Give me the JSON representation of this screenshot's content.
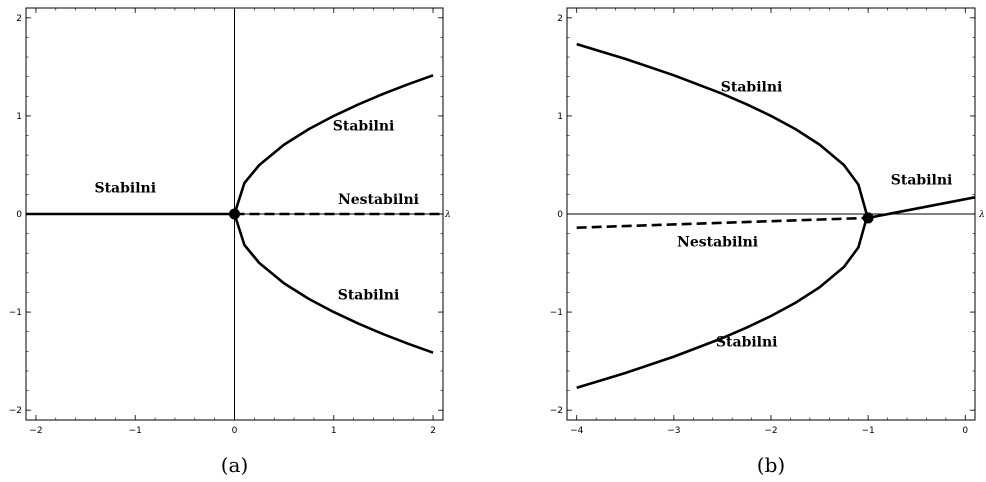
{
  "chart_data": [
    {
      "type": "line",
      "caption": "(a)",
      "xlim": [
        -2.1,
        2.1
      ],
      "ylim": [
        -2.1,
        2.1
      ],
      "x_ticks": [
        -2,
        -1,
        0,
        1,
        2
      ],
      "y_ticks": [
        -2,
        -1,
        0,
        1,
        2
      ],
      "x_tick_labels": [
        "−2",
        "−1",
        "0",
        "1",
        "2"
      ],
      "y_tick_labels": [
        "−2",
        "−1",
        "0",
        "1",
        "2"
      ],
      "x_axis_label": "λ",
      "series": [
        {
          "style": "solid",
          "points": [
            [
              -2.1,
              0
            ],
            [
              0,
              0
            ]
          ]
        },
        {
          "style": "dashed",
          "points": [
            [
              0,
              0
            ],
            [
              2.1,
              0
            ]
          ]
        },
        {
          "style": "solid",
          "points": [
            [
              0,
              0
            ],
            [
              0.1,
              0.316
            ],
            [
              0.25,
              0.5
            ],
            [
              0.5,
              0.707
            ],
            [
              0.75,
              0.866
            ],
            [
              1,
              1
            ],
            [
              1.25,
              1.118
            ],
            [
              1.5,
              1.225
            ],
            [
              1.75,
              1.323
            ],
            [
              2,
              1.414
            ]
          ]
        },
        {
          "style": "solid",
          "points": [
            [
              0,
              0
            ],
            [
              0.1,
              -0.316
            ],
            [
              0.25,
              -0.5
            ],
            [
              0.5,
              -0.707
            ],
            [
              0.75,
              -0.866
            ],
            [
              1,
              -1
            ],
            [
              1.25,
              -1.118
            ],
            [
              1.5,
              -1.225
            ],
            [
              1.75,
              -1.323
            ],
            [
              2,
              -1.414
            ]
          ]
        }
      ],
      "points": [
        {
          "x": 0,
          "y": 0
        }
      ],
      "annotations": [
        {
          "text": "Stabilni",
          "x": -1.1,
          "y": 0.22
        },
        {
          "text": "Nestabilni",
          "x": 1.45,
          "y": 0.1
        },
        {
          "text": "Stabilni",
          "x": 1.3,
          "y": 0.85
        },
        {
          "text": "Stabilni",
          "x": 1.35,
          "y": -0.87
        }
      ]
    },
    {
      "type": "line",
      "caption": "(b)",
      "xlim": [
        -4.1,
        0.1
      ],
      "ylim": [
        -2.1,
        2.1
      ],
      "x_ticks": [
        -4,
        -3,
        -2,
        -1,
        0
      ],
      "y_ticks": [
        -2,
        -1,
        0,
        1,
        2
      ],
      "x_tick_labels": [
        "−4",
        "−3",
        "−2",
        "−1",
        "0"
      ],
      "y_tick_labels": [
        "−2",
        "−1",
        "0",
        "1",
        "2"
      ],
      "x_axis_label": "λ",
      "series": [
        {
          "style": "solid",
          "points": [
            [
              -1.01,
              -0.02
            ],
            [
              -1.1,
              0.3
            ],
            [
              -1.25,
              0.5
            ],
            [
              -1.5,
              0.707
            ],
            [
              -1.75,
              0.866
            ],
            [
              -2,
              1
            ],
            [
              -2.25,
              1.118
            ],
            [
              -2.5,
              1.225
            ],
            [
              -3,
              1.414
            ],
            [
              -3.5,
              1.581
            ],
            [
              -4,
              1.732
            ]
          ]
        },
        {
          "style": "solid",
          "points": [
            [
              -1.01,
              -0.02
            ],
            [
              -1.1,
              -0.34
            ],
            [
              -1.25,
              -0.54
            ],
            [
              -1.5,
              -0.747
            ],
            [
              -1.75,
              -0.906
            ],
            [
              -2,
              -1.04
            ],
            [
              -2.25,
              -1.158
            ],
            [
              -2.5,
              -1.265
            ],
            [
              -3,
              -1.454
            ],
            [
              -3.5,
              -1.621
            ],
            [
              -4,
              -1.772
            ]
          ]
        },
        {
          "style": "dashed",
          "points": [
            [
              -4,
              -0.14
            ],
            [
              -1,
              -0.04
            ]
          ]
        },
        {
          "style": "solid",
          "points": [
            [
              -1,
              -0.04
            ],
            [
              0.1,
              0.17
            ]
          ]
        }
      ],
      "points": [
        {
          "x": -1,
          "y": -0.04
        }
      ],
      "annotations": [
        {
          "text": "Stabilni",
          "x": -2.2,
          "y": 1.25
        },
        {
          "text": "Stabilni",
          "x": -0.45,
          "y": 0.3
        },
        {
          "text": "Nestabilni",
          "x": -2.55,
          "y": -0.33
        },
        {
          "text": "Stabilni",
          "x": -2.25,
          "y": -1.35
        }
      ]
    }
  ]
}
